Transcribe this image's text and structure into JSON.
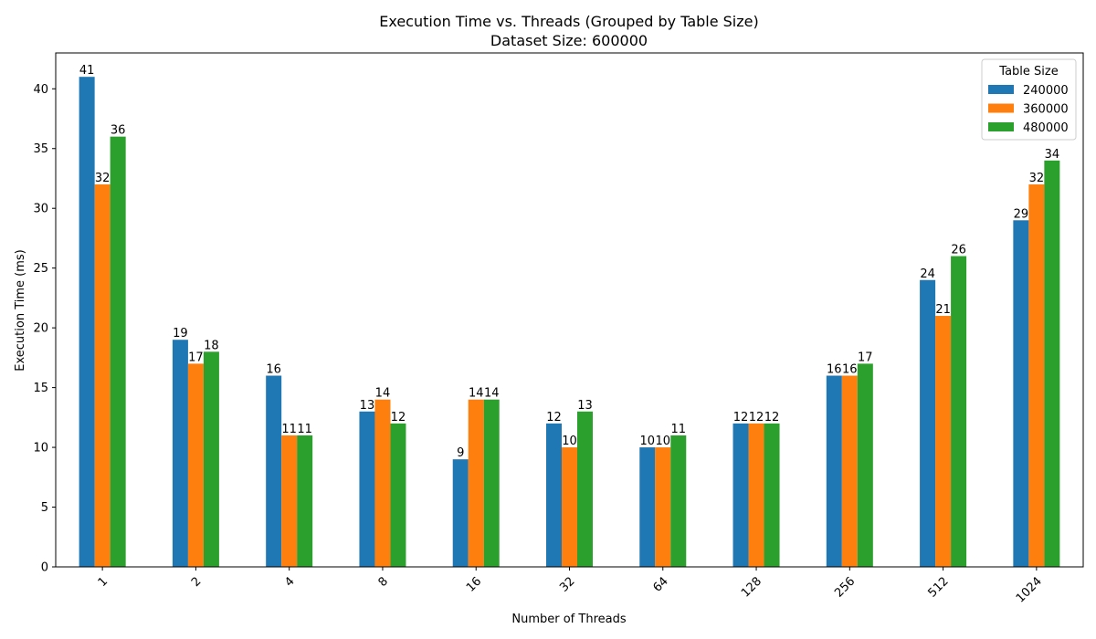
{
  "chart_data": {
    "type": "bar",
    "title": "Execution Time vs. Threads (Grouped by Table Size)",
    "subtitle": "Dataset Size: 600000",
    "xlabel": "Number of Threads",
    "ylabel": "Execution Time (ms)",
    "categories": [
      "1",
      "2",
      "4",
      "8",
      "16",
      "32",
      "64",
      "128",
      "256",
      "512",
      "1024"
    ],
    "ylim": [
      0,
      43
    ],
    "yticks": [
      0,
      5,
      10,
      15,
      20,
      25,
      30,
      35,
      40
    ],
    "grid": false,
    "legend": {
      "title": "Table Size",
      "position": "top-right"
    },
    "series": [
      {
        "name": "240000",
        "color": "#1f77b4",
        "values": [
          41,
          19,
          16,
          13,
          9,
          12,
          10,
          12,
          16,
          24,
          29
        ]
      },
      {
        "name": "360000",
        "color": "#ff7f0e",
        "values": [
          32,
          17,
          11,
          14,
          14,
          10,
          10,
          12,
          16,
          21,
          32
        ]
      },
      {
        "name": "480000",
        "color": "#2ca02c",
        "values": [
          36,
          18,
          11,
          12,
          14,
          13,
          11,
          12,
          17,
          26,
          34
        ]
      }
    ]
  }
}
